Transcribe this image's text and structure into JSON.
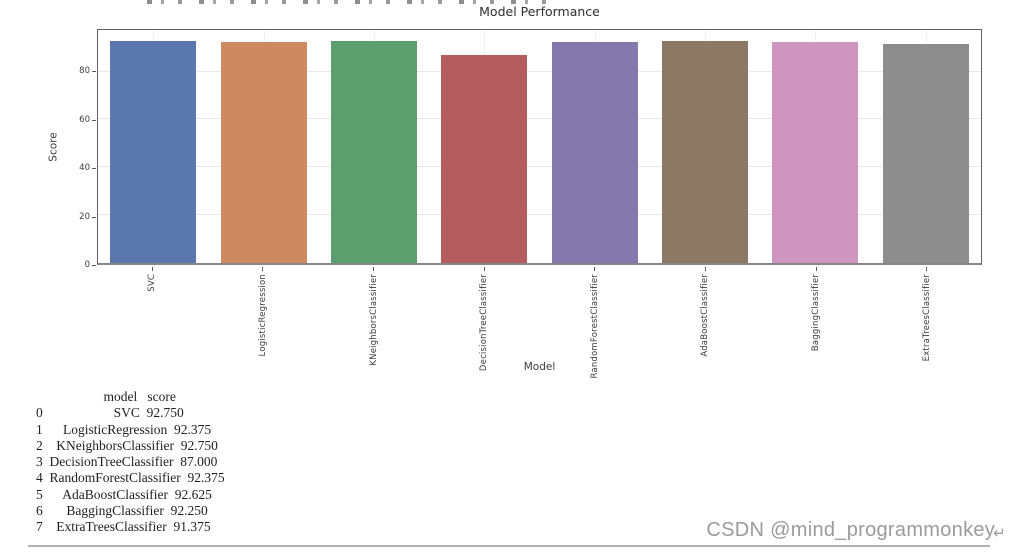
{
  "chart_data": {
    "type": "bar",
    "title": "Model Performance",
    "xlabel": "Model",
    "ylabel": "Score",
    "categories": [
      "SVC",
      "LogisticRegression",
      "KNeighborsClassifier",
      "DecisionTreeClassifier",
      "RandomForestClassifier",
      "AdaBoostClassifier",
      "BaggingClassifier",
      "ExtraTreesClassifier"
    ],
    "values": [
      92.75,
      92.375,
      92.75,
      87.0,
      92.375,
      92.625,
      92.25,
      91.375
    ],
    "bar_colors": [
      "#5a78ad",
      "#cd8a61",
      "#5c9e6e",
      "#b45c5e",
      "#8478ad",
      "#8c7865",
      "#cf95c0",
      "#8d8d8d"
    ],
    "yticks": [
      0,
      20,
      40,
      60,
      80
    ],
    "ylim": [
      0,
      97.4
    ],
    "grid": true,
    "legend": false
  },
  "console_output": {
    "header": {
      "model": "model",
      "score": "score"
    },
    "rows": [
      {
        "index": "0",
        "model": "SVC",
        "score": "92.750"
      },
      {
        "index": "1",
        "model": "LogisticRegression",
        "score": "92.375"
      },
      {
        "index": "2",
        "model": "KNeighborsClassifier",
        "score": "92.750"
      },
      {
        "index": "3",
        "model": "DecisionTreeClassifier",
        "score": "87.000"
      },
      {
        "index": "4",
        "model": "RandomForestClassifier",
        "score": "92.375"
      },
      {
        "index": "5",
        "model": "AdaBoostClassifier",
        "score": "92.625"
      },
      {
        "index": "6",
        "model": "BaggingClassifier",
        "score": "92.250"
      },
      {
        "index": "7",
        "model": "ExtraTreesClassifier",
        "score": "91.375"
      }
    ]
  },
  "watermark": {
    "text": "CSDN @mind_programmonkey",
    "arrow": "↵",
    "color": "#9b9b9b"
  }
}
